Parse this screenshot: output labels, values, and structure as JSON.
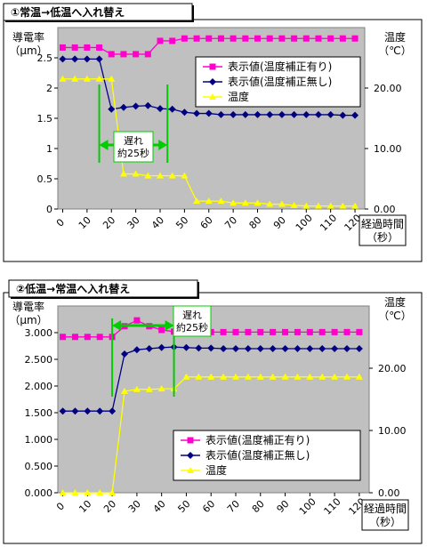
{
  "colors": {
    "plot_bg": "#c0c0c0",
    "series_corrected": "#ff00cc",
    "series_uncorrected": "#000080",
    "series_temperature": "#ffff00",
    "marker_line": "#00cc00",
    "delay_box_border": "#00cc00"
  },
  "chart_data": [
    {
      "type": "line",
      "title": "①常温→低温へ入れ替え",
      "ylabel": "導電率\n（μm）",
      "y2label": "温度\n（℃）",
      "xlabel": "経過時間\n（秒）",
      "xlim": [
        -2,
        124
      ],
      "ylim": [
        0,
        3
      ],
      "y2lim": [
        0,
        30
      ],
      "y_ticks": [
        "0",
        "0.5",
        "1",
        "1.5",
        "2",
        "2.5"
      ],
      "y2_ticks": [
        "0.00",
        "10.00",
        "20.00"
      ],
      "x_ticks": [
        "0",
        "10",
        "20",
        "30",
        "40",
        "50",
        "60",
        "70",
        "80",
        "90",
        "100",
        "110",
        "120"
      ],
      "legend": {
        "position": "top-right",
        "entries": [
          "表示値(温度補正有り)",
          "表示値(温度補正無し)",
          "温度"
        ]
      },
      "annotation": {
        "lines": [
          "遅れ",
          "約25秒"
        ],
        "from_x": 15,
        "to_x": 43
      },
      "series": [
        {
          "name": "表示値(温度補正有り)",
          "axis": "left",
          "x": [
            0,
            5,
            10,
            15,
            20,
            25,
            30,
            35,
            40,
            45,
            50,
            55,
            60,
            65,
            70,
            75,
            80,
            85,
            90,
            95,
            100,
            105,
            110,
            115,
            120
          ],
          "values": [
            2.67,
            2.67,
            2.67,
            2.67,
            2.56,
            2.56,
            2.56,
            2.56,
            2.78,
            2.78,
            2.82,
            2.82,
            2.82,
            2.82,
            2.82,
            2.82,
            2.82,
            2.82,
            2.82,
            2.82,
            2.82,
            2.82,
            2.82,
            2.82,
            2.82
          ]
        },
        {
          "name": "表示値(温度補正無し)",
          "axis": "left",
          "x": [
            0,
            5,
            10,
            15,
            20,
            25,
            30,
            35,
            40,
            45,
            50,
            55,
            60,
            65,
            70,
            75,
            80,
            85,
            90,
            95,
            100,
            105,
            110,
            115,
            120
          ],
          "values": [
            2.48,
            2.48,
            2.48,
            2.48,
            1.65,
            1.68,
            1.7,
            1.71,
            1.66,
            1.65,
            1.6,
            1.58,
            1.58,
            1.56,
            1.56,
            1.56,
            1.56,
            1.56,
            1.56,
            1.56,
            1.56,
            1.56,
            1.56,
            1.55,
            1.55
          ]
        },
        {
          "name": "温度",
          "axis": "right",
          "x": [
            0,
            5,
            10,
            15,
            20,
            25,
            30,
            35,
            40,
            45,
            50,
            55,
            60,
            65,
            70,
            75,
            80,
            85,
            90,
            95,
            100,
            105,
            110,
            115,
            120
          ],
          "values": [
            21.5,
            21.5,
            21.5,
            21.5,
            21.5,
            5.8,
            5.8,
            5.5,
            5.5,
            5.5,
            5.5,
            1.3,
            1.3,
            1.3,
            1.0,
            1.0,
            1.0,
            0.8,
            0.8,
            0.6,
            0.5,
            0.5,
            0.5,
            0.5,
            0.5
          ]
        }
      ]
    },
    {
      "type": "line",
      "title": "②低温→常温へ入れ替え",
      "ylabel": "導電率\n（μm）",
      "y2label": "温度\n（℃）",
      "xlabel": "経過時間\n（秒）",
      "xlim": [
        -2,
        124
      ],
      "ylim": [
        0,
        3.5
      ],
      "y2lim": [
        0,
        30
      ],
      "y_ticks": [
        "0.000",
        "0.500",
        "1.000",
        "1.500",
        "2.000",
        "2.500",
        "3.000"
      ],
      "y2_ticks": [
        "0.00",
        "10.00",
        "20.00"
      ],
      "x_ticks": [
        "0",
        "10",
        "20",
        "30",
        "40",
        "50",
        "60",
        "70",
        "80",
        "90",
        "100",
        "110",
        "120"
      ],
      "legend": {
        "position": "bottom-right",
        "entries": [
          "表示値(温度補正有り)",
          "表示値(温度補正無し)",
          "温度"
        ]
      },
      "annotation": {
        "lines": [
          "遅れ",
          "約25秒"
        ],
        "from_x": 20,
        "to_x": 45
      },
      "series": [
        {
          "name": "表示値(温度補正有り)",
          "axis": "left",
          "x": [
            0,
            5,
            10,
            15,
            20,
            25,
            30,
            35,
            40,
            45,
            50,
            55,
            60,
            65,
            70,
            75,
            80,
            85,
            90,
            95,
            100,
            105,
            110,
            115,
            120
          ],
          "values": [
            2.92,
            2.92,
            2.92,
            2.92,
            2.92,
            3.12,
            3.23,
            3.12,
            3.05,
            3.02,
            3.01,
            3.01,
            3.01,
            3.01,
            3.01,
            3.01,
            3.01,
            3.01,
            3.01,
            3.01,
            3.01,
            3.01,
            3.01,
            3.01,
            3.01
          ]
        },
        {
          "name": "表示値(温度補正無し)",
          "axis": "left",
          "x": [
            0,
            5,
            10,
            15,
            20,
            25,
            30,
            35,
            40,
            45,
            50,
            55,
            60,
            65,
            70,
            75,
            80,
            85,
            90,
            95,
            100,
            105,
            110,
            115,
            120
          ],
          "values": [
            1.53,
            1.53,
            1.53,
            1.53,
            1.53,
            2.6,
            2.68,
            2.7,
            2.72,
            2.73,
            2.72,
            2.71,
            2.71,
            2.7,
            2.7,
            2.7,
            2.7,
            2.7,
            2.7,
            2.7,
            2.7,
            2.7,
            2.7,
            2.7,
            2.7
          ]
        },
        {
          "name": "温度",
          "axis": "right",
          "x": [
            0,
            5,
            10,
            15,
            20,
            25,
            30,
            35,
            40,
            45,
            50,
            55,
            60,
            65,
            70,
            75,
            80,
            85,
            90,
            95,
            100,
            105,
            110,
            115,
            120
          ],
          "values": [
            0.0,
            0.0,
            0.0,
            0.0,
            0.0,
            16.3,
            16.6,
            16.6,
            16.7,
            16.7,
            18.6,
            18.6,
            18.6,
            18.6,
            18.6,
            18.6,
            18.6,
            18.6,
            18.6,
            18.6,
            18.6,
            18.6,
            18.6,
            18.6,
            18.6
          ]
        }
      ]
    }
  ]
}
